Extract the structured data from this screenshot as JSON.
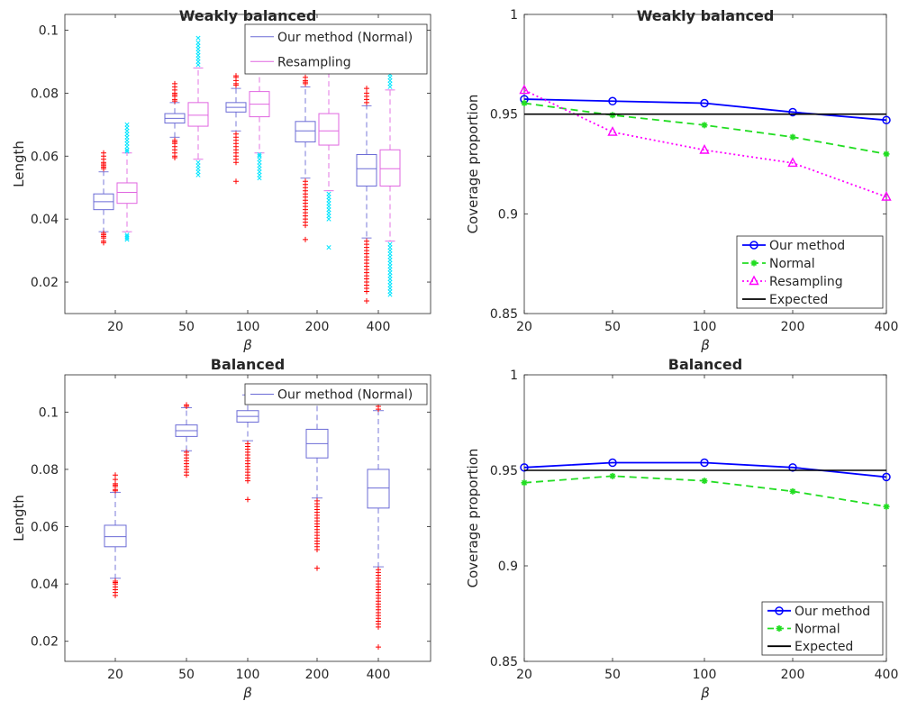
{
  "chart_data": [
    {
      "type": "box",
      "title": "Weakly balanced",
      "xlabel": "β",
      "ylabel": "Length",
      "ylim": [
        0.01,
        0.105
      ],
      "yticks": [
        0.02,
        0.04,
        0.06,
        0.08,
        0.1
      ],
      "categories": [
        "20",
        "50",
        "100",
        "200",
        "400"
      ],
      "legend_position": "top-right",
      "series": [
        {
          "name": "Our method (Normal)",
          "color": "#6b6bd6",
          "outlier_color": "#ff0000",
          "outlier_marker": "+",
          "boxes": [
            {
              "q1": 0.043,
              "median": 0.0455,
              "q3": 0.048,
              "lo": 0.036,
              "hi": 0.055,
              "out_lo": [
                0.034,
                0.035,
                0.0345,
                0.033,
                0.0355,
                0.0325
              ],
              "out_hi": [
                0.056,
                0.057,
                0.0575,
                0.058,
                0.059,
                0.06,
                0.061,
                0.0565
              ]
            },
            {
              "q1": 0.0705,
              "median": 0.072,
              "q3": 0.0735,
              "lo": 0.066,
              "hi": 0.077,
              "out_lo": [
                0.065,
                0.064,
                0.063,
                0.062,
                0.061,
                0.06,
                0.0595,
                0.0645
              ],
              "out_hi": [
                0.0775,
                0.078,
                0.079,
                0.0795,
                0.08,
                0.081,
                0.082,
                0.083
              ]
            },
            {
              "q1": 0.074,
              "median": 0.0755,
              "q3": 0.077,
              "lo": 0.068,
              "hi": 0.0815,
              "out_lo": [
                0.067,
                0.066,
                0.065,
                0.064,
                0.063,
                0.062,
                0.061,
                0.06,
                0.059,
                0.058,
                0.052
              ],
              "out_hi": [
                0.0825,
                0.083,
                0.084,
                0.085,
                0.0855
              ]
            },
            {
              "q1": 0.0645,
              "median": 0.068,
              "q3": 0.071,
              "lo": 0.053,
              "hi": 0.082,
              "out_lo": [
                0.052,
                0.051,
                0.05,
                0.049,
                0.048,
                0.047,
                0.046,
                0.045,
                0.044,
                0.043,
                0.042,
                0.041,
                0.04,
                0.039,
                0.038,
                0.0335
              ],
              "out_hi": [
                0.083,
                0.0835,
                0.084,
                0.085
              ]
            },
            {
              "q1": 0.0505,
              "median": 0.056,
              "q3": 0.0605,
              "lo": 0.034,
              "hi": 0.076,
              "out_lo": [
                0.033,
                0.032,
                0.031,
                0.03,
                0.029,
                0.028,
                0.027,
                0.026,
                0.025,
                0.024,
                0.023,
                0.022,
                0.021,
                0.02,
                0.019,
                0.018,
                0.017,
                0.014
              ],
              "out_hi": [
                0.077,
                0.078,
                0.079,
                0.08,
                0.0815
              ]
            }
          ]
        },
        {
          "name": "Resampling",
          "color": "#e066e0",
          "outlier_color": "#00e5ff",
          "outlier_marker": "x",
          "boxes": [
            {
              "q1": 0.045,
              "median": 0.0485,
              "q3": 0.0515,
              "lo": 0.036,
              "hi": 0.061,
              "out_lo": [
                0.035,
                0.0345,
                0.034,
                0.0335
              ],
              "out_hi": [
                0.0615,
                0.062,
                0.063,
                0.064,
                0.065,
                0.066,
                0.067,
                0.068,
                0.069,
                0.07
              ]
            },
            {
              "q1": 0.0695,
              "median": 0.073,
              "q3": 0.077,
              "lo": 0.059,
              "hi": 0.088,
              "out_lo": [
                0.058,
                0.057,
                0.056,
                0.055,
                0.054
              ],
              "out_hi": [
                0.089,
                0.09,
                0.091,
                0.092,
                0.093,
                0.094,
                0.095,
                0.096,
                0.0975
              ]
            },
            {
              "q1": 0.0725,
              "median": 0.0765,
              "q3": 0.0805,
              "lo": 0.061,
              "hi": 0.09,
              "out_lo": [
                0.0605,
                0.06,
                0.059,
                0.058,
                0.057,
                0.056,
                0.055,
                0.054,
                0.053
              ],
              "out_hi": [
                0.091,
                0.092
              ]
            },
            {
              "q1": 0.0635,
              "median": 0.068,
              "q3": 0.0735,
              "lo": 0.049,
              "hi": 0.089,
              "out_lo": [
                0.048,
                0.047,
                0.046,
                0.045,
                0.044,
                0.043,
                0.042,
                0.041,
                0.04,
                0.031
              ],
              "out_hi": [
                0.09,
                0.0905,
                0.091,
                0.092
              ]
            },
            {
              "q1": 0.0505,
              "median": 0.056,
              "q3": 0.062,
              "lo": 0.033,
              "hi": 0.081,
              "out_lo": [
                0.032,
                0.031,
                0.03,
                0.029,
                0.028,
                0.027,
                0.026,
                0.025,
                0.024,
                0.023,
                0.022,
                0.021,
                0.02,
                0.019,
                0.018,
                0.017,
                0.016
              ],
              "out_hi": [
                0.082,
                0.083,
                0.084,
                0.085,
                0.086,
                0.087,
                0.088
              ]
            }
          ]
        }
      ]
    },
    {
      "type": "line",
      "title": "Weakly balanced",
      "xlabel": "β",
      "ylabel": "Coverage proportion",
      "ylim": [
        0.85,
        1
      ],
      "yticks": [
        0.85,
        0.9,
        0.95,
        1
      ],
      "ytick_labels": [
        "0.85",
        "0.9",
        "0.95",
        "1"
      ],
      "categories": [
        "20",
        "50",
        "100",
        "200",
        "400"
      ],
      "legend_position": "bottom-right",
      "series": [
        {
          "name": "Our method",
          "color": "#0000ff",
          "style": "solid",
          "marker": "circle",
          "values": [
            0.9575,
            0.9565,
            0.9555,
            0.951,
            0.947
          ]
        },
        {
          "name": "Normal",
          "color": "#22dd22",
          "style": "dashed",
          "marker": "asterisk",
          "values": [
            0.9555,
            0.9495,
            0.9445,
            0.9385,
            0.93
          ]
        },
        {
          "name": "Resampling",
          "color": "#ff00ff",
          "style": "dotted",
          "marker": "triangle",
          "values": [
            0.962,
            0.941,
            0.932,
            0.9255,
            0.9085
          ]
        },
        {
          "name": "Expected",
          "color": "#000000",
          "style": "solid",
          "marker": "none",
          "values": [
            0.95,
            0.95,
            0.95,
            0.95,
            0.95
          ]
        }
      ]
    },
    {
      "type": "box",
      "title": "Balanced",
      "xlabel": "β",
      "ylabel": "Length",
      "ylim": [
        0.013,
        0.113
      ],
      "yticks": [
        0.02,
        0.04,
        0.06,
        0.08,
        0.1
      ],
      "categories": [
        "20",
        "50",
        "100",
        "200",
        "400"
      ],
      "legend_position": "top-right",
      "series": [
        {
          "name": "Our method (Normal)",
          "color": "#6b6bd6",
          "outlier_color": "#ff0000",
          "outlier_marker": "+",
          "boxes": [
            {
              "q1": 0.053,
              "median": 0.0565,
              "q3": 0.0605,
              "lo": 0.042,
              "hi": 0.072,
              "out_lo": [
                0.041,
                0.0405,
                0.04,
                0.039,
                0.038,
                0.037,
                0.036
              ],
              "out_hi": [
                0.0725,
                0.073,
                0.074,
                0.0745,
                0.075,
                0.0765,
                0.078
              ]
            },
            {
              "q1": 0.0915,
              "median": 0.0935,
              "q3": 0.0955,
              "lo": 0.0865,
              "hi": 0.1015,
              "out_lo": [
                0.086,
                0.085,
                0.084,
                0.083,
                0.082,
                0.081,
                0.08,
                0.079,
                0.078
              ],
              "out_hi": [
                0.102,
                0.1025
              ]
            },
            {
              "q1": 0.0965,
              "median": 0.0985,
              "q3": 0.1005,
              "lo": 0.09,
              "hi": 0.106,
              "out_lo": [
                0.089,
                0.088,
                0.087,
                0.086,
                0.085,
                0.084,
                0.083,
                0.082,
                0.081,
                0.08,
                0.079,
                0.078,
                0.077,
                0.076,
                0.0695
              ],
              "out_hi": []
            },
            {
              "q1": 0.084,
              "median": 0.089,
              "q3": 0.094,
              "lo": 0.07,
              "hi": 0.108,
              "out_lo": [
                0.069,
                0.068,
                0.067,
                0.066,
                0.065,
                0.064,
                0.063,
                0.062,
                0.061,
                0.06,
                0.059,
                0.058,
                0.057,
                0.056,
                0.055,
                0.054,
                0.053,
                0.052,
                0.0455
              ],
              "out_hi": []
            },
            {
              "q1": 0.0665,
              "median": 0.0735,
              "q3": 0.08,
              "lo": 0.046,
              "hi": 0.1005,
              "out_lo": [
                0.045,
                0.044,
                0.043,
                0.042,
                0.041,
                0.04,
                0.039,
                0.038,
                0.037,
                0.036,
                0.035,
                0.034,
                0.033,
                0.032,
                0.031,
                0.03,
                0.029,
                0.028,
                0.027,
                0.026,
                0.025,
                0.018
              ],
              "out_hi": [
                0.101,
                0.102
              ]
            }
          ]
        }
      ]
    },
    {
      "type": "line",
      "title": "Balanced",
      "xlabel": "β",
      "ylabel": "Coverage proportion",
      "ylim": [
        0.85,
        1
      ],
      "yticks": [
        0.85,
        0.9,
        0.95,
        1
      ],
      "ytick_labels": [
        "0.85",
        "0.9",
        "0.95",
        "1"
      ],
      "categories": [
        "20",
        "50",
        "100",
        "200",
        "400"
      ],
      "legend_position": "bottom-right",
      "series": [
        {
          "name": "Our method",
          "color": "#0000ff",
          "style": "solid",
          "marker": "circle",
          "values": [
            0.9515,
            0.954,
            0.954,
            0.9515,
            0.9465
          ]
        },
        {
          "name": "Normal",
          "color": "#22dd22",
          "style": "dashed",
          "marker": "asterisk",
          "values": [
            0.9435,
            0.947,
            0.9445,
            0.939,
            0.931
          ]
        },
        {
          "name": "Expected",
          "color": "#000000",
          "style": "solid",
          "marker": "none",
          "values": [
            0.95,
            0.95,
            0.95,
            0.95,
            0.95
          ]
        }
      ]
    }
  ]
}
